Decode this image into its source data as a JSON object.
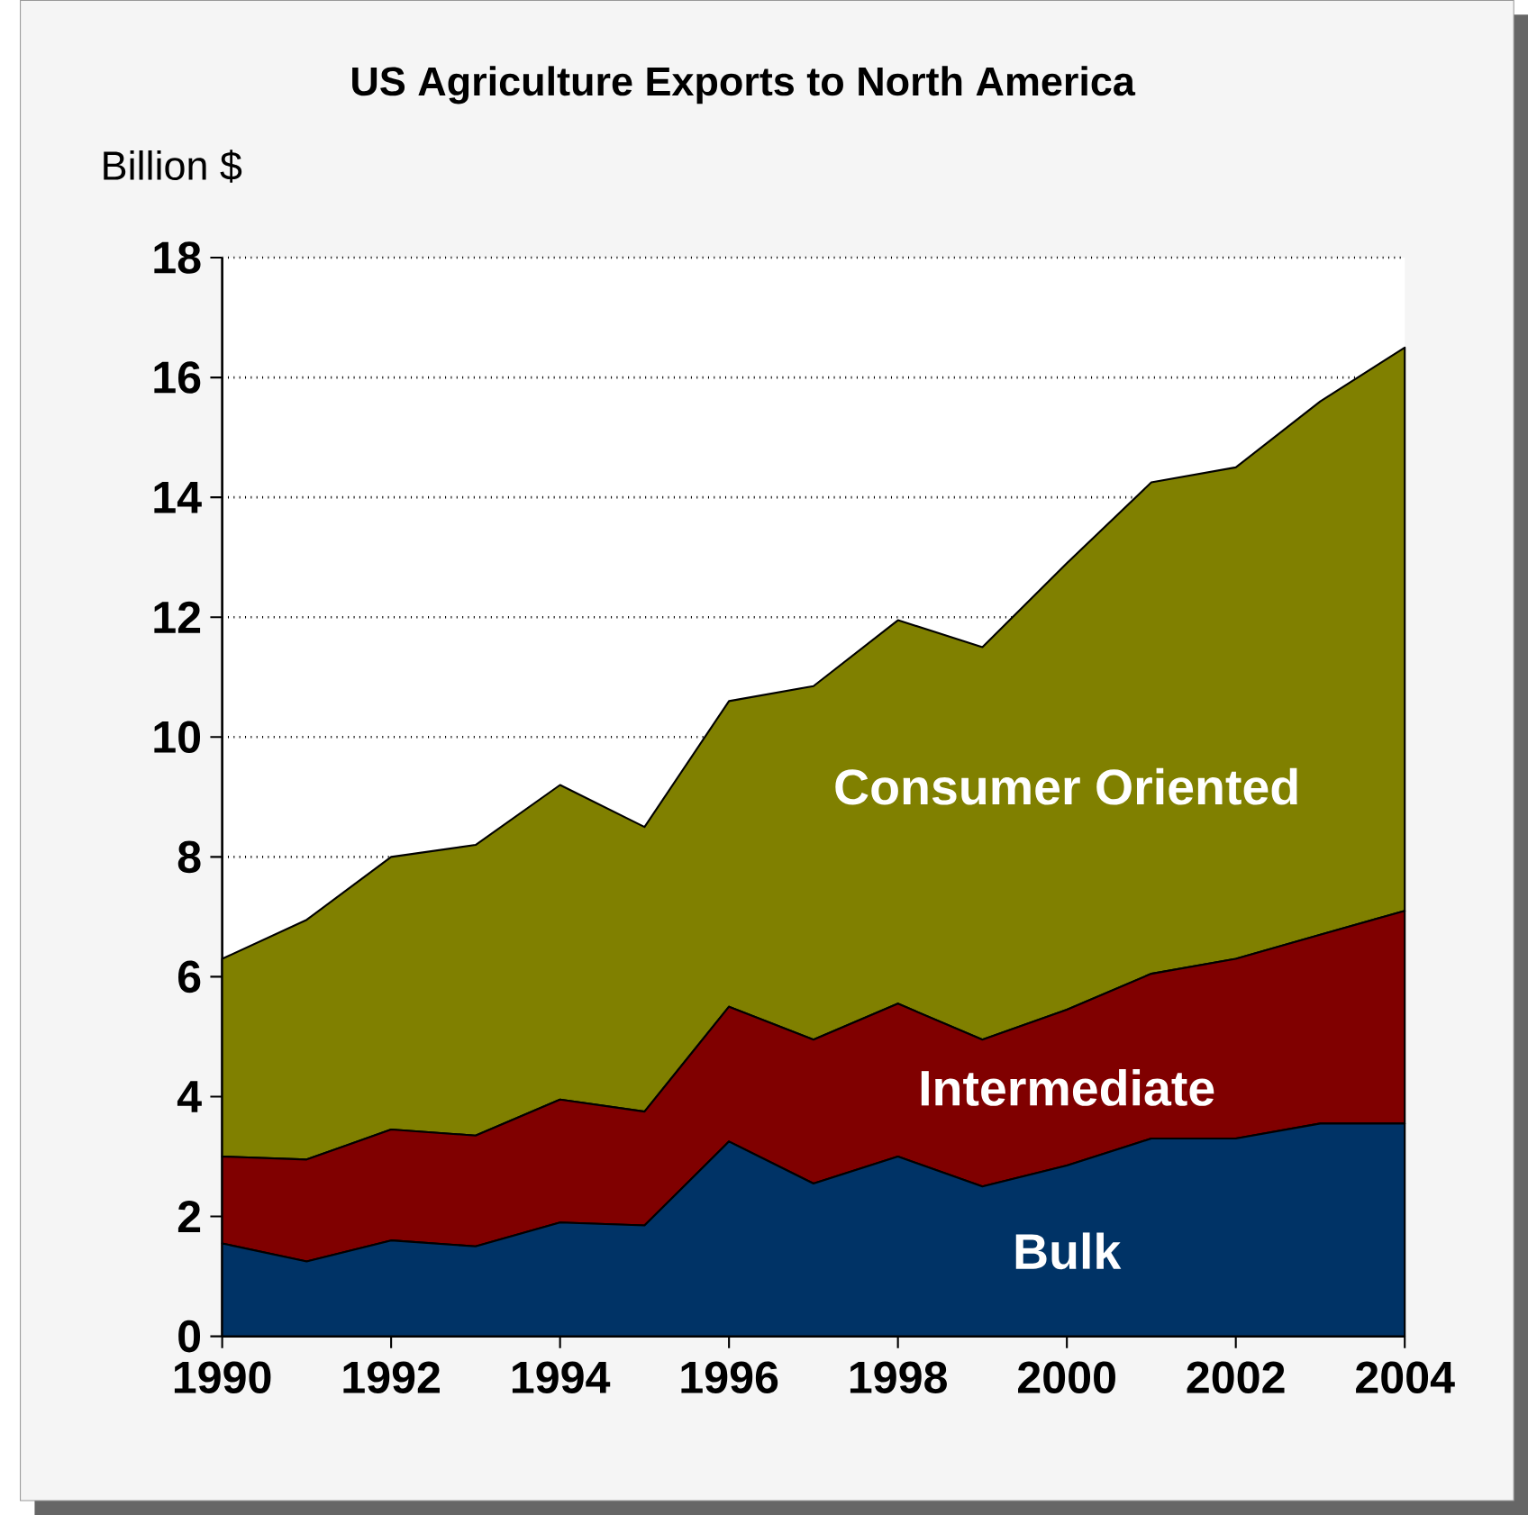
{
  "chart_data": {
    "type": "area",
    "stacked": true,
    "title": "US Agriculture Exports to North America",
    "ylabel": "Billion $",
    "x": [
      1990,
      1991,
      1992,
      1993,
      1994,
      1995,
      1996,
      1997,
      1998,
      1999,
      2000,
      2001,
      2002,
      2003,
      2004
    ],
    "series": [
      {
        "name": "Bulk",
        "color": "#003366",
        "values": [
          1.55,
          1.25,
          1.6,
          1.5,
          1.9,
          1.85,
          3.25,
          2.55,
          3.0,
          2.5,
          2.85,
          3.3,
          3.3,
          3.55,
          3.55
        ]
      },
      {
        "name": "Intermediate",
        "color": "#800000",
        "values": [
          1.45,
          1.7,
          1.85,
          1.85,
          2.05,
          1.9,
          2.25,
          2.4,
          2.55,
          2.45,
          2.6,
          2.75,
          3.0,
          3.15,
          3.55
        ]
      },
      {
        "name": "Consumer Oriented",
        "color": "#808000",
        "values": [
          3.3,
          4.0,
          4.55,
          4.85,
          5.25,
          4.75,
          5.1,
          5.9,
          6.4,
          6.55,
          7.45,
          8.2,
          8.2,
          8.9,
          9.4
        ]
      }
    ],
    "xlim": [
      1990,
      2004
    ],
    "xticks": [
      1990,
      1992,
      1994,
      1996,
      1998,
      2000,
      2002,
      2004
    ],
    "ylim": [
      0,
      18
    ],
    "yticks": [
      0,
      2,
      4,
      6,
      8,
      10,
      12,
      14,
      16,
      18
    ],
    "grid": "y",
    "legend": false
  }
}
